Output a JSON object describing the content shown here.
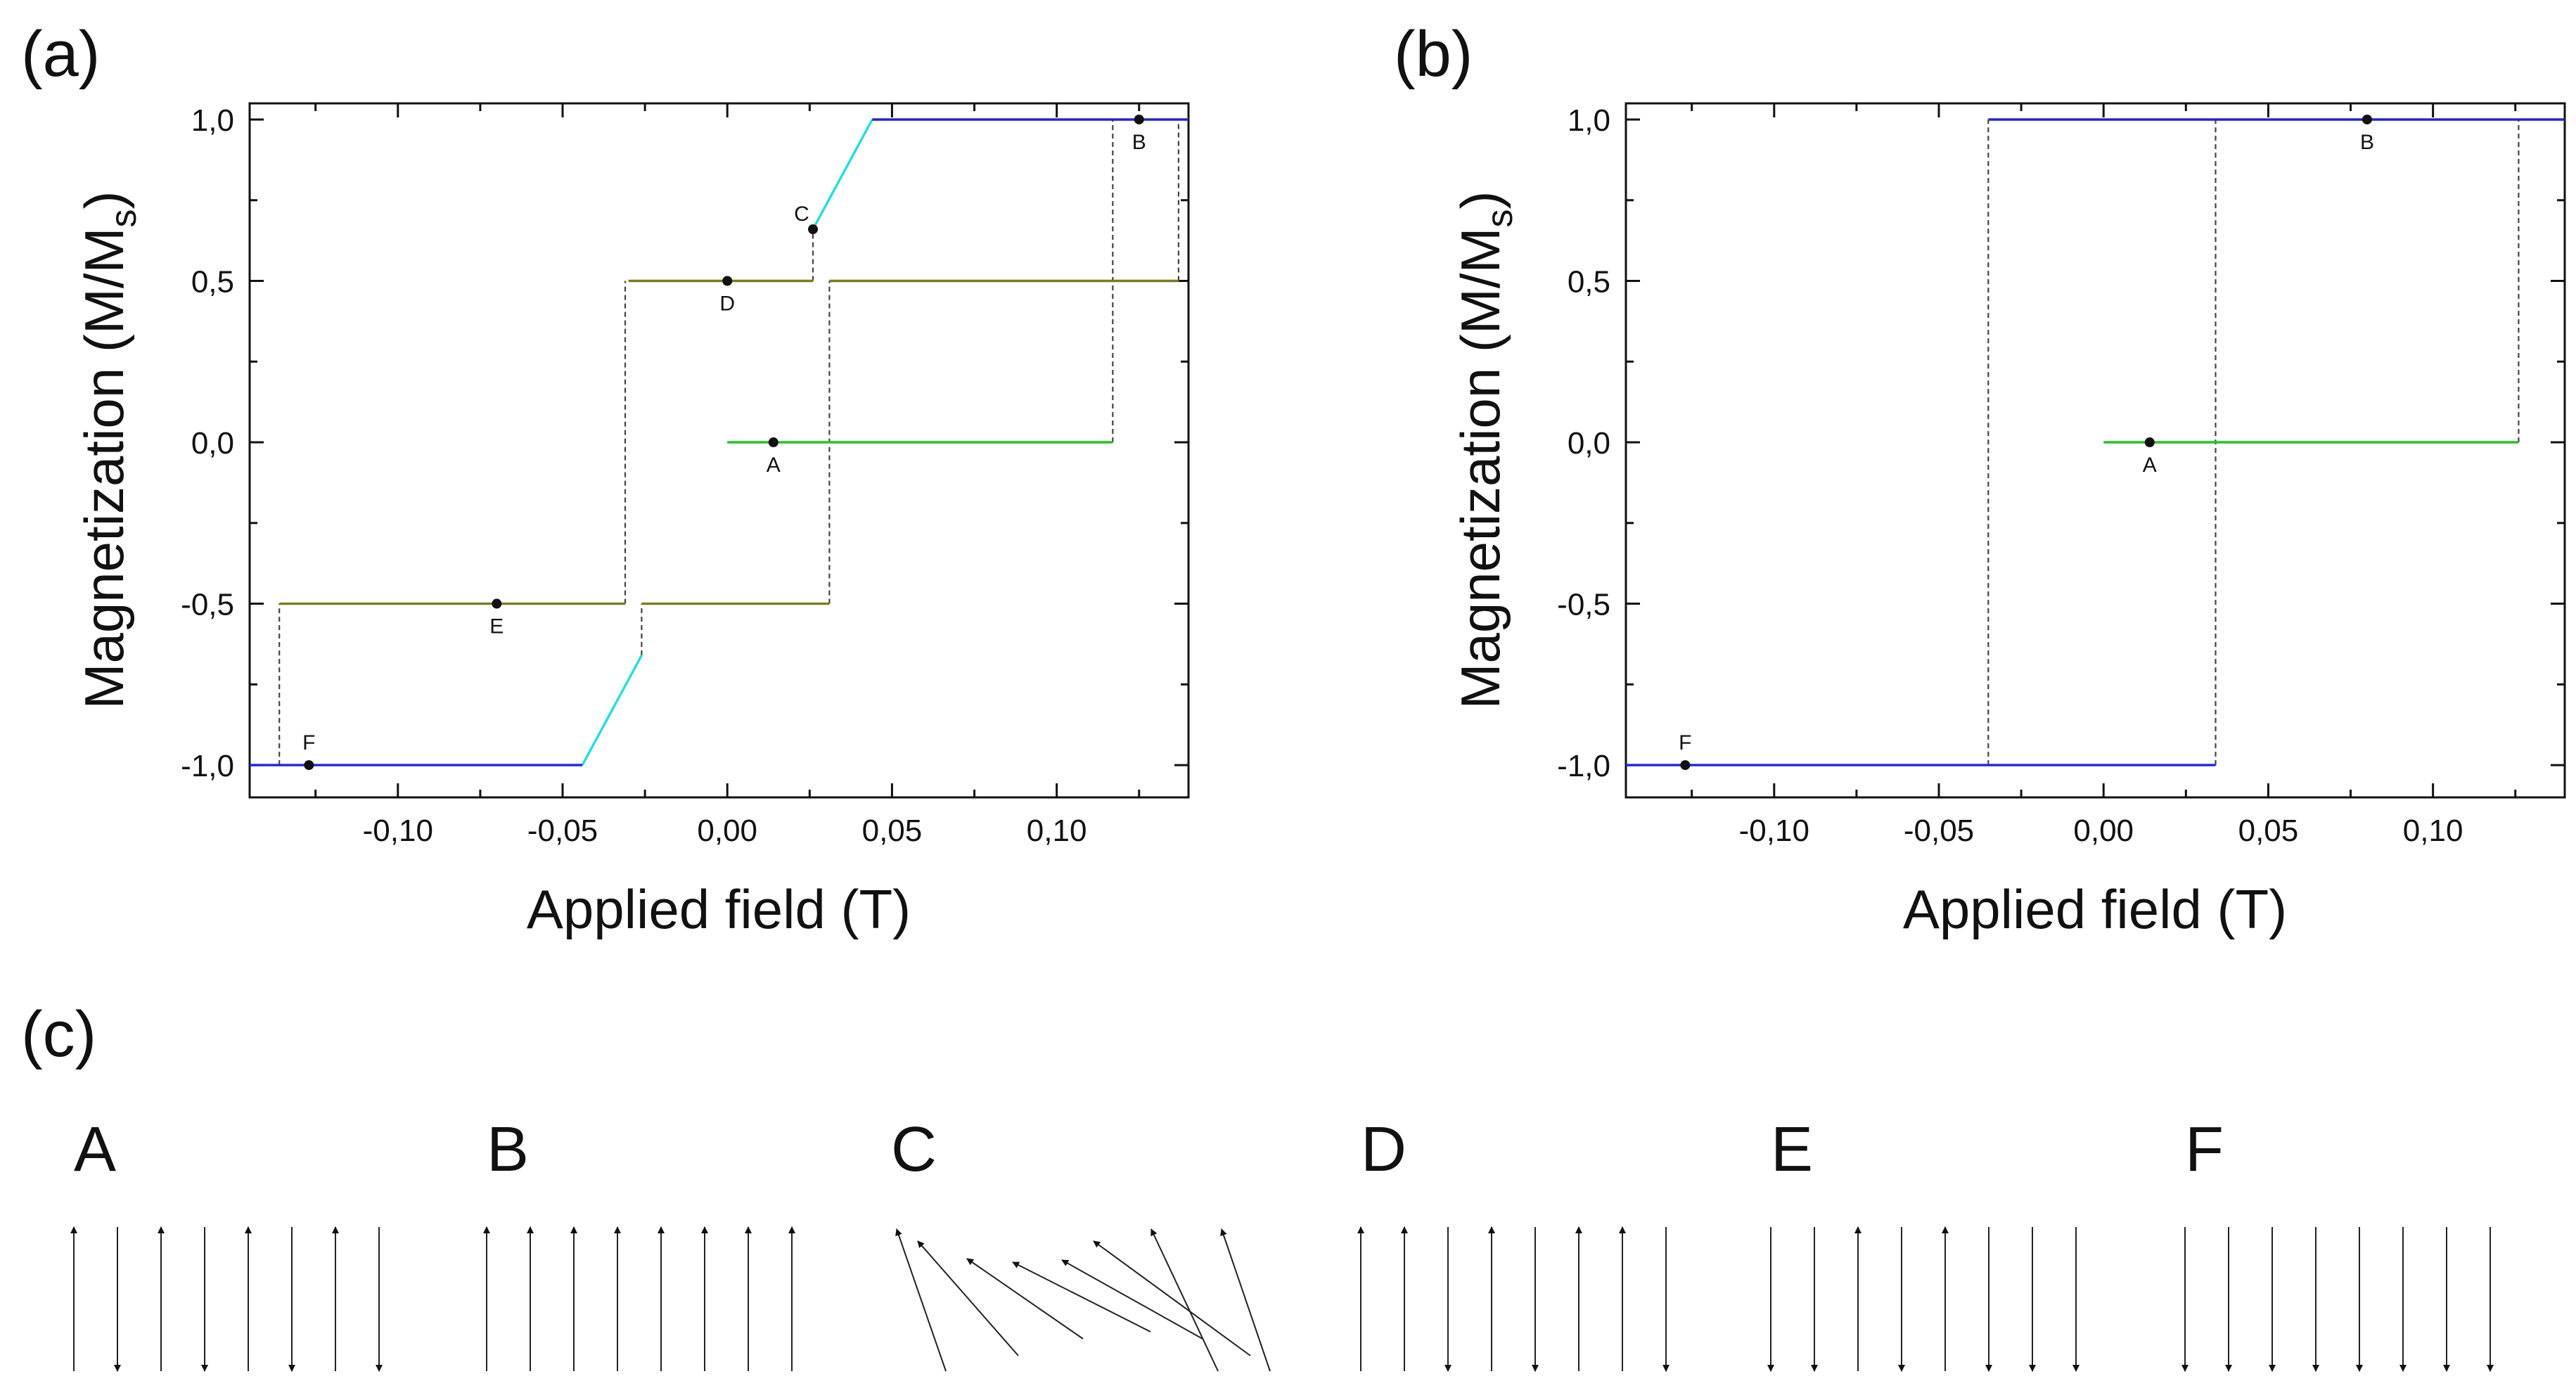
{
  "figure": {
    "panel_a_label": "(a)",
    "panel_b_label": "(b)",
    "panel_c_label": "(c)"
  },
  "colors": {
    "outer_loop": "#2323d8",
    "minor_loop": "#7f7a1e",
    "initial_curve": "#22c522",
    "rotation_segment": "#22dde0",
    "guide_line": "#444444",
    "axis": "#111111"
  },
  "chart_data": [
    {
      "panel": "(a)",
      "type": "line",
      "xlabel": "Applied field (T)",
      "ylabel": "Magnetization (M/M",
      "ylabel_sub": "s",
      "ylabel_close": ")",
      "xlim": [
        -0.145,
        0.14
      ],
      "ylim": [
        -1.1,
        1.05
      ],
      "xticks": [
        -0.1,
        -0.05,
        0.0,
        0.05,
        0.1
      ],
      "xtick_labels": [
        "-0,10",
        "-0,05",
        "0,00",
        "0,05",
        "0,10"
      ],
      "yticks": [
        -1.0,
        -0.5,
        0.0,
        0.5,
        1.0
      ],
      "ytick_labels": [
        "-1,0",
        "-0,5",
        "0,0",
        "0,5",
        "1,0"
      ],
      "series": [
        {
          "name": "initial",
          "color_key": "initial_curve",
          "dashed": false,
          "x": [
            0.0,
            0.117
          ],
          "y": [
            0.0,
            0.0
          ]
        },
        {
          "name": "upper-plateau",
          "color_key": "minor_loop",
          "dashed": false,
          "x": [
            -0.03,
            0.026
          ],
          "y": [
            0.5,
            0.5
          ]
        },
        {
          "name": "upper-plateau-right",
          "color_key": "minor_loop",
          "dashed": false,
          "x": [
            0.031,
            0.137
          ],
          "y": [
            0.5,
            0.5
          ]
        },
        {
          "name": "lower-plateau",
          "color_key": "minor_loop",
          "dashed": false,
          "x": [
            -0.136,
            -0.031
          ],
          "y": [
            -0.5,
            -0.5
          ]
        },
        {
          "name": "lower-plateau-right",
          "color_key": "minor_loop",
          "dashed": false,
          "x": [
            -0.026,
            0.031
          ],
          "y": [
            -0.5,
            -0.5
          ]
        },
        {
          "name": "rotation-up",
          "color_key": "rotation_segment",
          "dashed": false,
          "x": [
            0.026,
            0.044
          ],
          "y": [
            0.66,
            1.0
          ]
        },
        {
          "name": "rotation-down",
          "color_key": "rotation_segment",
          "dashed": false,
          "x": [
            -0.044,
            -0.026
          ],
          "y": [
            -1.0,
            -0.66
          ]
        },
        {
          "name": "saturation-positive",
          "color_key": "outer_loop",
          "dashed": false,
          "x": [
            0.044,
            0.14
          ],
          "y": [
            1.0,
            1.0
          ]
        },
        {
          "name": "saturation-negative",
          "color_key": "outer_loop",
          "dashed": false,
          "x": [
            -0.145,
            -0.044
          ],
          "y": [
            -1.0,
            -1.0
          ]
        },
        {
          "name": "jump-1",
          "color_key": "guide_line",
          "dashed": true,
          "x": [
            0.117,
            0.117
          ],
          "y": [
            0.0,
            1.0
          ]
        },
        {
          "name": "jump-2",
          "color_key": "guide_line",
          "dashed": true,
          "x": [
            0.137,
            0.137
          ],
          "y": [
            0.5,
            1.0
          ]
        },
        {
          "name": "jump-3",
          "color_key": "guide_line",
          "dashed": true,
          "x": [
            0.026,
            0.026
          ],
          "y": [
            0.5,
            0.66
          ]
        },
        {
          "name": "jump-4",
          "color_key": "guide_line",
          "dashed": true,
          "x": [
            0.031,
            0.031
          ],
          "y": [
            -0.5,
            0.5
          ]
        },
        {
          "name": "jump-5",
          "color_key": "guide_line",
          "dashed": true,
          "x": [
            -0.031,
            -0.031
          ],
          "y": [
            -0.5,
            0.5
          ]
        },
        {
          "name": "jump-6",
          "color_key": "guide_line",
          "dashed": true,
          "x": [
            -0.026,
            -0.026
          ],
          "y": [
            -0.66,
            -0.5
          ]
        },
        {
          "name": "jump-7",
          "color_key": "guide_line",
          "dashed": true,
          "x": [
            -0.136,
            -0.136
          ],
          "y": [
            -1.0,
            -0.5
          ]
        }
      ],
      "points": [
        {
          "label": "A",
          "x": 0.014,
          "y": 0.0,
          "label_pos": "below"
        },
        {
          "label": "B",
          "x": 0.125,
          "y": 1.0,
          "label_pos": "below"
        },
        {
          "label": "C",
          "x": 0.026,
          "y": 0.66,
          "label_pos": "above-left"
        },
        {
          "label": "D",
          "x": 0.0,
          "y": 0.5,
          "label_pos": "below"
        },
        {
          "label": "E",
          "x": -0.07,
          "y": -0.5,
          "label_pos": "below"
        },
        {
          "label": "F",
          "x": -0.127,
          "y": -1.0,
          "label_pos": "above"
        }
      ]
    },
    {
      "panel": "(b)",
      "type": "line",
      "xlabel": "Applied field (T)",
      "ylabel": "Magnetization (M/M",
      "ylabel_sub": "s",
      "ylabel_close": ")",
      "xlim": [
        -0.145,
        0.14
      ],
      "ylim": [
        -1.1,
        1.05
      ],
      "xticks": [
        -0.1,
        -0.05,
        0.0,
        0.05,
        0.1
      ],
      "xtick_labels": [
        "-0,10",
        "-0,05",
        "0,00",
        "0,05",
        "0,10"
      ],
      "yticks": [
        -1.0,
        -0.5,
        0.0,
        0.5,
        1.0
      ],
      "ytick_labels": [
        "-1,0",
        "-0,5",
        "0,0",
        "0,5",
        "1,0"
      ],
      "series": [
        {
          "name": "initial",
          "color_key": "initial_curve",
          "dashed": false,
          "x": [
            0.0,
            0.126
          ],
          "y": [
            0.0,
            0.0
          ]
        },
        {
          "name": "saturation-positive",
          "color_key": "outer_loop",
          "dashed": false,
          "x": [
            -0.035,
            0.14
          ],
          "y": [
            1.0,
            1.0
          ]
        },
        {
          "name": "saturation-negative",
          "color_key": "outer_loop",
          "dashed": false,
          "x": [
            -0.145,
            0.034
          ],
          "y": [
            -1.0,
            -1.0
          ]
        },
        {
          "name": "jump-1",
          "color_key": "guide_line",
          "dashed": true,
          "x": [
            0.126,
            0.126
          ],
          "y": [
            0.0,
            1.0
          ]
        },
        {
          "name": "jump-2",
          "color_key": "guide_line",
          "dashed": true,
          "x": [
            0.034,
            0.034
          ],
          "y": [
            -1.0,
            1.0
          ]
        },
        {
          "name": "jump-3",
          "color_key": "guide_line",
          "dashed": true,
          "x": [
            -0.035,
            -0.035
          ],
          "y": [
            -1.0,
            1.0
          ]
        }
      ],
      "points": [
        {
          "label": "A",
          "x": 0.014,
          "y": 0.0,
          "label_pos": "below"
        },
        {
          "label": "B",
          "x": 0.08,
          "y": 1.0,
          "label_pos": "below"
        },
        {
          "label": "F",
          "x": -0.127,
          "y": -1.0,
          "label_pos": "above"
        }
      ]
    }
  ],
  "states": [
    {
      "label": "A",
      "arrows": [
        "up",
        "down",
        "up",
        "down",
        "up",
        "down",
        "up",
        "down"
      ]
    },
    {
      "label": "B",
      "arrows": [
        "up",
        "up",
        "up",
        "up",
        "up",
        "up",
        "up",
        "up"
      ]
    },
    {
      "label": "C",
      "arrows": [
        -22,
        -38,
        -55,
        -63,
        -63,
        -55,
        -38,
        -22
      ]
    },
    {
      "label": "D",
      "arrows": [
        "up",
        "up",
        "down",
        "up",
        "down",
        "up",
        "up",
        "down"
      ]
    },
    {
      "label": "E",
      "arrows": [
        "down",
        "down",
        "up",
        "down",
        "up",
        "down",
        "down",
        "down"
      ]
    },
    {
      "label": "F",
      "arrows": [
        "down",
        "down",
        "down",
        "down",
        "down",
        "down",
        "down",
        "down"
      ]
    }
  ]
}
